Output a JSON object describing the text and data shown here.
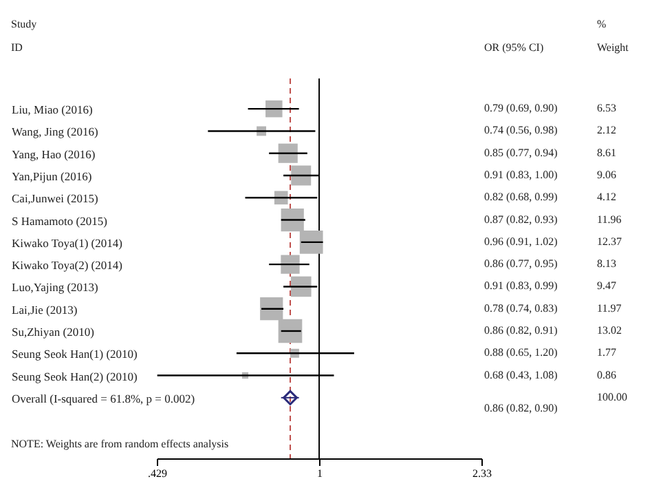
{
  "chart_data": {
    "type": "bubble",
    "orientation": "horizontal",
    "log": "x",
    "grid": false,
    "categories": [
      "Liu, Miao (2016)",
      "Wang, Jing (2016)",
      "Yang, Hao (2016)",
      "Yan,Pijun (2016)",
      "Cai,Junwei (2015)",
      "S Hamamoto (2015)",
      "Kiwako Toya(1) (2014)",
      "Kiwako Toya(2) (2014)",
      "Luo,Yajing (2013)",
      "Lai,Jie (2013)",
      "Su,Zhiyan (2010)",
      "Seung Seok Han(1) (2010)",
      "Seung Seok Han(2) (2010)",
      "Overall  (I-squared = 61.8%, p = 0.002)"
    ],
    "series": [
      {
        "marker": "square",
        "color": "#b4b4b4",
        "values": [
          0.79,
          0.74,
          0.85,
          0.91,
          0.82,
          0.87,
          0.96,
          0.86,
          0.91,
          0.78,
          0.86,
          0.88,
          0.68,
          null
        ],
        "errors": [
          [
            0.69,
            0.9
          ],
          [
            0.56,
            0.98
          ],
          [
            0.77,
            0.94
          ],
          [
            0.83,
            1.0
          ],
          [
            0.68,
            0.99
          ],
          [
            0.82,
            0.93
          ],
          [
            0.91,
            1.02
          ],
          [
            0.77,
            0.95
          ],
          [
            0.83,
            0.99
          ],
          [
            0.74,
            0.83
          ],
          [
            0.82,
            0.91
          ],
          [
            0.65,
            1.2
          ],
          [
            0.43,
            1.08
          ],
          null
        ],
        "sizes": [
          0.5,
          0.16,
          0.66,
          0.7,
          0.32,
          0.92,
          0.95,
          0.62,
          0.73,
          0.92,
          1,
          0.14,
          0.07,
          null
        ],
        "value_labels": [
          "0.79 (0.69, 0.90)",
          "0.74 (0.56, 0.98)",
          "0.85 (0.77, 0.94)",
          "0.91 (0.83, 1.00)",
          "0.82 (0.68, 0.99)",
          "0.87 (0.82, 0.93)",
          "0.96 (0.91, 1.02)",
          "0.86 (0.77, 0.95)",
          "0.91 (0.83, 0.99)",
          "0.78 (0.74, 0.83)",
          "0.86 (0.82, 0.91)",
          "0.88 (0.65, 1.20)",
          "0.68 (0.43, 1.08)",
          null
        ]
      },
      {
        "type": "scatter",
        "marker": "diamond",
        "color": "#2b2b7a",
        "values": [
          null,
          null,
          null,
          null,
          null,
          null,
          null,
          null,
          null,
          null,
          null,
          null,
          null,
          0.86
        ],
        "errors": [
          null,
          null,
          null,
          null,
          null,
          null,
          null,
          null,
          null,
          null,
          null,
          null,
          null,
          [
            0.82,
            0.9
          ]
        ]
      }
    ],
    "xlim": [
      0.429,
      2.33
    ],
    "xticks": [
      {
        "value": 0.429,
        "label": ".429"
      },
      1,
      {
        "value": 2.33,
        "label": "2.33"
      }
    ],
    "ref_lines": [
      {
        "axis": "x",
        "value": 1,
        "color": "#000000",
        "line_style": "solid"
      },
      {
        "axis": "x",
        "value": 0.86,
        "color": "#c0504d",
        "line_style": "dashed"
      }
    ],
    "annotations": [
      "Study",
      "ID",
      "OR (95% CI)",
      "%",
      "Weight",
      "NOTE: Weights are from random effects analysis",
      "0.86 (0.82, 0.90)",
      "6.53",
      "2.12",
      "8.61",
      "9.06",
      "4.12",
      "11.96",
      "12.37",
      "8.13",
      "9.47",
      "11.97",
      "13.02",
      "1.77",
      "0.86",
      "100.00"
    ]
  }
}
